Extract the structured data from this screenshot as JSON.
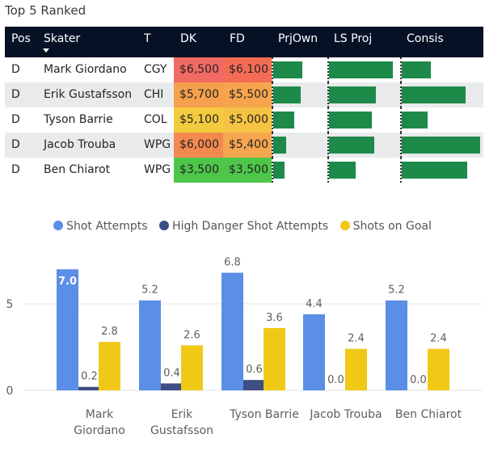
{
  "title": "Top 5 Ranked",
  "table": {
    "columns": [
      "Pos",
      "Skater",
      "T",
      "DK",
      "FD",
      "PrjOwn",
      "LS Proj",
      "Consis"
    ],
    "rows": [
      {
        "pos": "D",
        "skater": "Mark Giordano",
        "team": "CGY",
        "dk": "$6,500",
        "fd": "$6,100",
        "dk_color": "#f26a64",
        "fd_color": "#f56c55",
        "prjown": 0.55,
        "lsproj": 0.92,
        "consis": 0.36
      },
      {
        "pos": "D",
        "skater": "Erik Gustafsson",
        "team": "CHI",
        "dk": "$5,700",
        "fd": "$5,500",
        "dk_color": "#f5a04c",
        "fd_color": "#f7a54d",
        "prjown": 0.52,
        "lsproj": 0.68,
        "consis": 0.8
      },
      {
        "pos": "D",
        "skater": "Tyson Barrie",
        "team": "COL",
        "dk": "$5,100",
        "fd": "$5,000",
        "dk_color": "#f2cb3f",
        "fd_color": "#f5c343",
        "prjown": 0.4,
        "lsproj": 0.62,
        "consis": 0.32
      },
      {
        "pos": "D",
        "skater": "Jacob Trouba",
        "team": "WPG",
        "dk": "$6,000",
        "fd": "$5,400",
        "dk_color": "#f4894f",
        "fd_color": "#f6a64f",
        "prjown": 0.24,
        "lsproj": 0.65,
        "consis": 0.98
      },
      {
        "pos": "D",
        "skater": "Ben Chiarot",
        "team": "WPG",
        "dk": "$3,500",
        "fd": "$3,500",
        "dk_color": "#4dc64a",
        "fd_color": "#4dc64a",
        "prjown": 0.22,
        "lsproj": 0.38,
        "consis": 0.82
      }
    ]
  },
  "colors": {
    "shot_attempts": "#5b8ee6",
    "high_danger": "#3d4e84",
    "shots_on_goal": "#f0c816",
    "bar_green": "#1e8a4a"
  },
  "chart_data": {
    "type": "bar",
    "categories": [
      [
        "Mark",
        "Giordano"
      ],
      [
        "Erik",
        "Gustafsson"
      ],
      [
        "Tyson Barrie"
      ],
      [
        "Jacob Trouba"
      ],
      [
        "Ben Chiarot"
      ]
    ],
    "series": [
      {
        "name": "Shot Attempts",
        "values": [
          7.0,
          5.2,
          6.8,
          4.4,
          5.2
        ],
        "labels": [
          "7.0",
          "5.2",
          "6.8",
          "4.4",
          "5.2"
        ]
      },
      {
        "name": "High Danger Shot Attempts",
        "values": [
          0.2,
          0.4,
          0.6,
          0.0,
          0.0
        ],
        "labels": [
          "0.2",
          "0.4",
          "0.6",
          "0.0",
          "0.0"
        ]
      },
      {
        "name": "Shots on Goal",
        "values": [
          2.8,
          2.6,
          3.6,
          2.4,
          2.4
        ],
        "labels": [
          "2.8",
          "2.6",
          "3.6",
          "2.4",
          "2.4"
        ]
      }
    ],
    "ylim": [
      0,
      8
    ],
    "yticks": [
      0,
      5
    ],
    "ytick_labels": [
      "0",
      "5"
    ],
    "legend_position": "top-center"
  }
}
